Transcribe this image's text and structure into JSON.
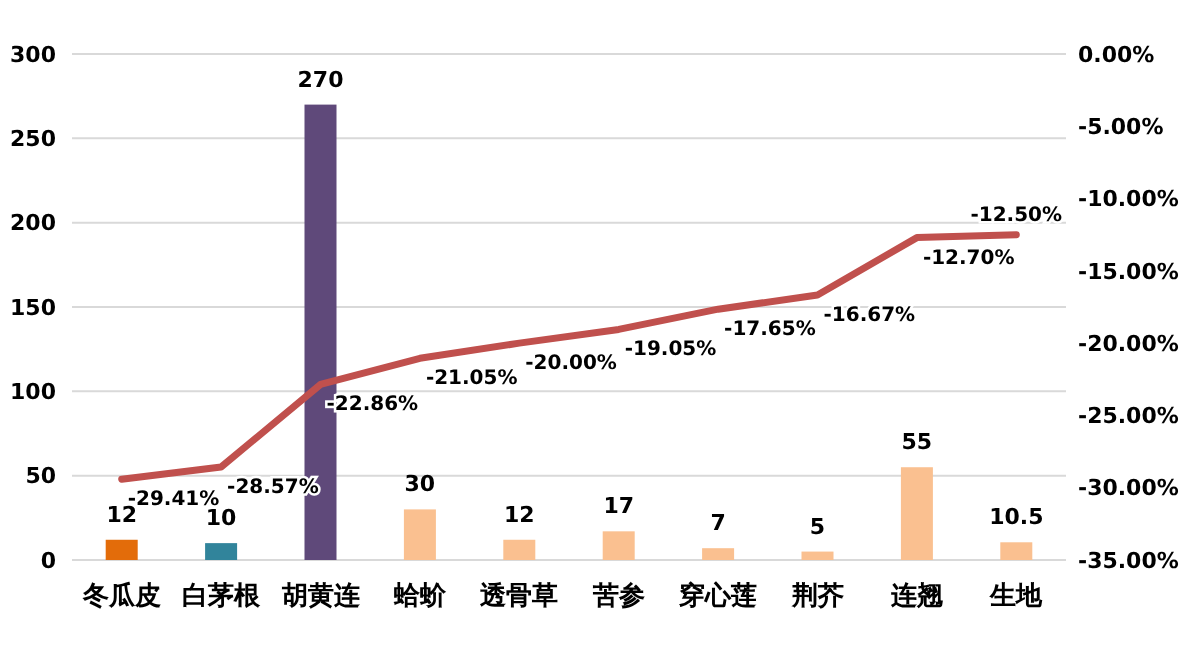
{
  "chart_data": {
    "type": "bar",
    "categories": [
      "冬瓜皮",
      "白茅根",
      "胡黄连",
      "蛤蚧",
      "透骨草",
      "苦参",
      "穿心莲",
      "荆芥",
      "连翘",
      "生地"
    ],
    "series": [
      {
        "colors": [
          "#e36c0a",
          "#31849b",
          "#5f497a",
          "#fac090",
          "#fac090",
          "#fac090",
          "#fac090",
          "#fac090",
          "#fac090",
          "#fac090"
        ],
        "values": [
          12,
          10,
          270,
          30,
          12,
          17,
          7,
          5,
          55,
          10.5
        ],
        "value_labels": [
          "12",
          "10",
          "270",
          "30",
          "12",
          "17",
          "7",
          "5",
          "55",
          "10.5"
        ]
      },
      {
        "type": "line",
        "axis": "y2",
        "color": "#c0504d",
        "values": [
          -29.41,
          -28.57,
          -22.86,
          -21.05,
          -20.0,
          -19.05,
          -17.65,
          -16.67,
          -12.7,
          -12.5
        ],
        "value_labels": [
          "-29.41%",
          "-28.57%",
          "-22.86%",
          "-21.05%",
          "-20.00%",
          "-19.05%",
          "-17.65%",
          "-16.67%",
          "-12.70%",
          "-12.50%"
        ]
      }
    ],
    "ylim": [
      0,
      300
    ],
    "yticks": [
      0,
      50,
      100,
      150,
      200,
      250,
      300
    ],
    "y2lim": [
      -35,
      0
    ],
    "y2ticks": [
      {
        "value": -35,
        "label": "-35.00%"
      },
      {
        "value": -30,
        "label": "-30.00%"
      },
      {
        "value": -25,
        "label": "-25.00%"
      },
      {
        "value": -20,
        "label": "-20.00%"
      },
      {
        "value": -15,
        "label": "-15.00%"
      },
      {
        "value": -10,
        "label": "-10.00%"
      },
      {
        "value": -5,
        "label": "-5.00%"
      },
      {
        "value": 0,
        "label": "0.00%"
      }
    ],
    "grid": "y"
  }
}
